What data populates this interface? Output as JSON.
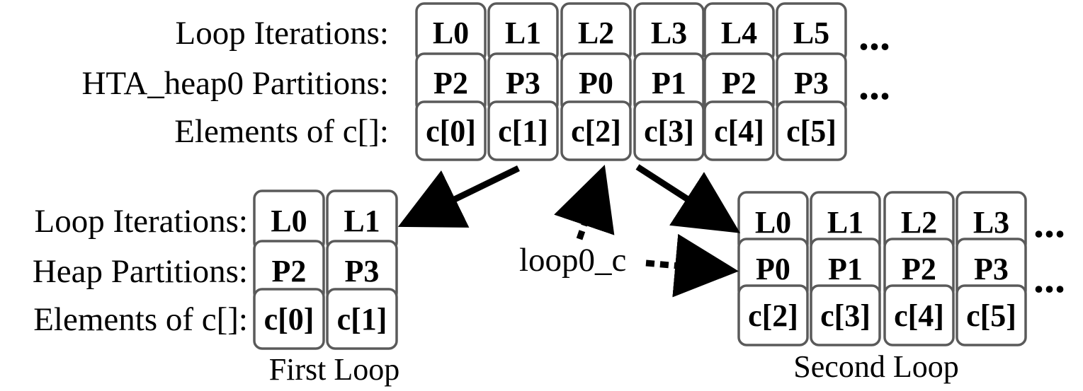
{
  "colors": {
    "cell_border": "#5a5a5a",
    "arrow": "#000000",
    "text": "#000000"
  },
  "top_table": {
    "labels": [
      "Loop Iterations:",
      "HTA_heap0 Partitions:",
      "Elements of c[]:"
    ],
    "rows": [
      [
        "L0",
        "L1",
        "L2",
        "L3",
        "L4",
        "L5"
      ],
      [
        "P2",
        "P3",
        "P0",
        "P1",
        "P2",
        "P3"
      ],
      [
        "c[0]",
        "c[1]",
        "c[2]",
        "c[3]",
        "c[4]",
        "c[5]"
      ]
    ],
    "ellipsis": [
      "...",
      "..."
    ]
  },
  "first_loop": {
    "labels": [
      "Loop Iterations:",
      "Heap Partitions:",
      "Elements of c[]:"
    ],
    "rows": [
      [
        "L0",
        "L1"
      ],
      [
        "P2",
        "P3"
      ],
      [
        "c[0]",
        "c[1]"
      ]
    ],
    "caption": "First Loop"
  },
  "second_loop": {
    "rows": [
      [
        "L0",
        "L1",
        "L2",
        "L3"
      ],
      [
        "P0",
        "P1",
        "P2",
        "P3"
      ],
      [
        "c[2]",
        "c[3]",
        "c[4]",
        "c[5]"
      ]
    ],
    "ellipsis": [
      "...",
      "..."
    ],
    "caption": "Second Loop"
  },
  "pointer_label": "loop0_c"
}
